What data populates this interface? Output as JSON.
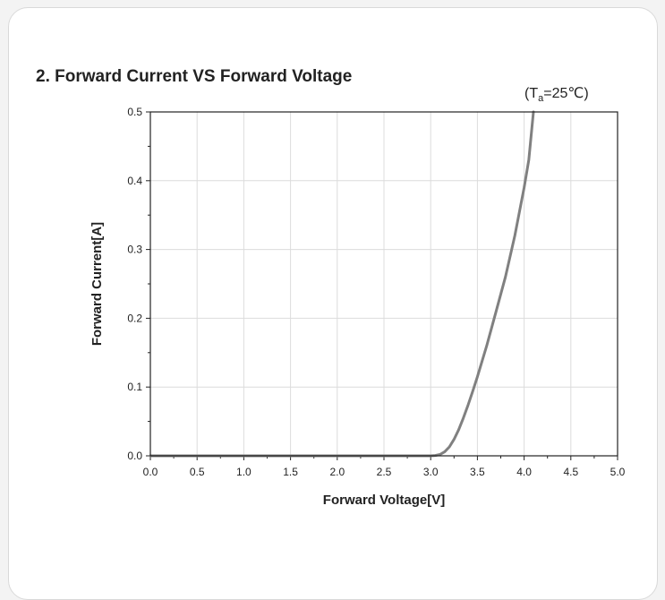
{
  "chart_data": {
    "type": "line",
    "title": "2. Forward Current VS Forward Voltage",
    "condition": {
      "prefix": "(T",
      "subscript": "a",
      "suffix": "=25℃)"
    },
    "xlabel": "Forward Voltage[V]",
    "ylabel": "Forward Current[A]",
    "xlim": [
      0.0,
      5.0
    ],
    "ylim": [
      0.0,
      0.5
    ],
    "xticks": [
      "0.0",
      "0.5",
      "1.0",
      "1.5",
      "2.0",
      "2.5",
      "3.0",
      "3.5",
      "4.0",
      "4.5",
      "5.0"
    ],
    "yticks": [
      "0.0",
      "0.1",
      "0.2",
      "0.3",
      "0.4",
      "0.5"
    ],
    "grid": true,
    "series": [
      {
        "color": "#808080",
        "x": [
          0.0,
          2.5,
          3.0,
          3.05,
          3.1,
          3.15,
          3.2,
          3.25,
          3.3,
          3.35,
          3.4,
          3.45,
          3.5,
          3.6,
          3.7,
          3.8,
          3.9,
          4.0,
          4.05,
          4.1
        ],
        "y": [
          0.0,
          0.0,
          0.0,
          0.0005,
          0.002,
          0.006,
          0.013,
          0.024,
          0.038,
          0.055,
          0.074,
          0.094,
          0.115,
          0.16,
          0.21,
          0.26,
          0.32,
          0.39,
          0.43,
          0.5
        ]
      }
    ]
  }
}
